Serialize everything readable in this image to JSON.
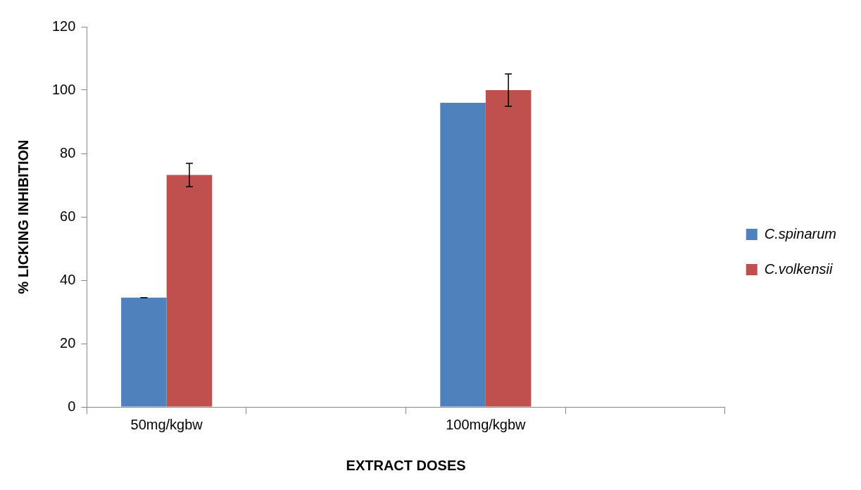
{
  "chart_data": {
    "type": "bar",
    "xlabel": "EXTRACT DOSES",
    "ylabel": "% LICKING INHIBITION",
    "categories": [
      "50mg/kgbw",
      null,
      "100mg/kgbw",
      null
    ],
    "series": [
      {
        "name": "C.spinarum",
        "color": "#4f81bd",
        "values": [
          34.5,
          null,
          96,
          null
        ],
        "errors": [
          0,
          null,
          null,
          null
        ]
      },
      {
        "name": "C.volkensii",
        "color": "#c0504d",
        "values": [
          73.2,
          null,
          100,
          null
        ],
        "errors": [
          3.7,
          null,
          5.1,
          null
        ]
      }
    ],
    "ylim": [
      0,
      120
    ],
    "yticks": [
      0,
      20,
      40,
      60,
      80,
      100,
      120
    ],
    "grid": false,
    "legend": "right"
  }
}
